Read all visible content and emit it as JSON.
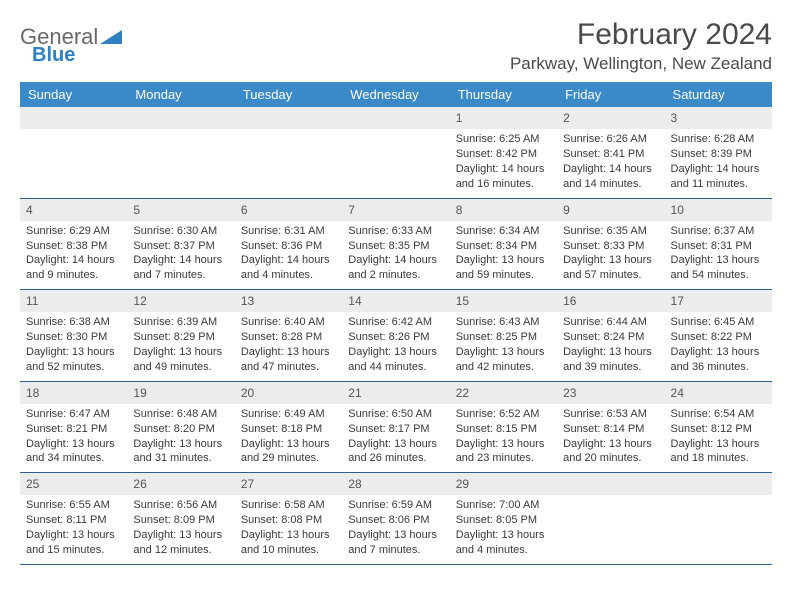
{
  "brand": {
    "part1": "General",
    "part2": "Blue"
  },
  "title": "February 2024",
  "location": "Parkway, Wellington, New Zealand",
  "colors": {
    "header_bg": "#3a89c9",
    "header_text": "#ffffff",
    "daynum_bg": "#ececec",
    "week_border": "#2c5f8d",
    "body_text": "#3a3a3a",
    "title_text": "#4a4a4a",
    "brand_gray": "#6a6a6a",
    "brand_blue": "#2f7fc1",
    "page_bg": "#ffffff"
  },
  "fonts": {
    "title_size_pt": 22,
    "location_size_pt": 13,
    "header_size_pt": 10,
    "cell_size_pt": 8
  },
  "day_headers": [
    "Sunday",
    "Monday",
    "Tuesday",
    "Wednesday",
    "Thursday",
    "Friday",
    "Saturday"
  ],
  "weeks": [
    [
      null,
      null,
      null,
      null,
      {
        "n": "1",
        "sr": "Sunrise: 6:25 AM",
        "ss": "Sunset: 8:42 PM",
        "dl": "Daylight: 14 hours and 16 minutes."
      },
      {
        "n": "2",
        "sr": "Sunrise: 6:26 AM",
        "ss": "Sunset: 8:41 PM",
        "dl": "Daylight: 14 hours and 14 minutes."
      },
      {
        "n": "3",
        "sr": "Sunrise: 6:28 AM",
        "ss": "Sunset: 8:39 PM",
        "dl": "Daylight: 14 hours and 11 minutes."
      }
    ],
    [
      {
        "n": "4",
        "sr": "Sunrise: 6:29 AM",
        "ss": "Sunset: 8:38 PM",
        "dl": "Daylight: 14 hours and 9 minutes."
      },
      {
        "n": "5",
        "sr": "Sunrise: 6:30 AM",
        "ss": "Sunset: 8:37 PM",
        "dl": "Daylight: 14 hours and 7 minutes."
      },
      {
        "n": "6",
        "sr": "Sunrise: 6:31 AM",
        "ss": "Sunset: 8:36 PM",
        "dl": "Daylight: 14 hours and 4 minutes."
      },
      {
        "n": "7",
        "sr": "Sunrise: 6:33 AM",
        "ss": "Sunset: 8:35 PM",
        "dl": "Daylight: 14 hours and 2 minutes."
      },
      {
        "n": "8",
        "sr": "Sunrise: 6:34 AM",
        "ss": "Sunset: 8:34 PM",
        "dl": "Daylight: 13 hours and 59 minutes."
      },
      {
        "n": "9",
        "sr": "Sunrise: 6:35 AM",
        "ss": "Sunset: 8:33 PM",
        "dl": "Daylight: 13 hours and 57 minutes."
      },
      {
        "n": "10",
        "sr": "Sunrise: 6:37 AM",
        "ss": "Sunset: 8:31 PM",
        "dl": "Daylight: 13 hours and 54 minutes."
      }
    ],
    [
      {
        "n": "11",
        "sr": "Sunrise: 6:38 AM",
        "ss": "Sunset: 8:30 PM",
        "dl": "Daylight: 13 hours and 52 minutes."
      },
      {
        "n": "12",
        "sr": "Sunrise: 6:39 AM",
        "ss": "Sunset: 8:29 PM",
        "dl": "Daylight: 13 hours and 49 minutes."
      },
      {
        "n": "13",
        "sr": "Sunrise: 6:40 AM",
        "ss": "Sunset: 8:28 PM",
        "dl": "Daylight: 13 hours and 47 minutes."
      },
      {
        "n": "14",
        "sr": "Sunrise: 6:42 AM",
        "ss": "Sunset: 8:26 PM",
        "dl": "Daylight: 13 hours and 44 minutes."
      },
      {
        "n": "15",
        "sr": "Sunrise: 6:43 AM",
        "ss": "Sunset: 8:25 PM",
        "dl": "Daylight: 13 hours and 42 minutes."
      },
      {
        "n": "16",
        "sr": "Sunrise: 6:44 AM",
        "ss": "Sunset: 8:24 PM",
        "dl": "Daylight: 13 hours and 39 minutes."
      },
      {
        "n": "17",
        "sr": "Sunrise: 6:45 AM",
        "ss": "Sunset: 8:22 PM",
        "dl": "Daylight: 13 hours and 36 minutes."
      }
    ],
    [
      {
        "n": "18",
        "sr": "Sunrise: 6:47 AM",
        "ss": "Sunset: 8:21 PM",
        "dl": "Daylight: 13 hours and 34 minutes."
      },
      {
        "n": "19",
        "sr": "Sunrise: 6:48 AM",
        "ss": "Sunset: 8:20 PM",
        "dl": "Daylight: 13 hours and 31 minutes."
      },
      {
        "n": "20",
        "sr": "Sunrise: 6:49 AM",
        "ss": "Sunset: 8:18 PM",
        "dl": "Daylight: 13 hours and 29 minutes."
      },
      {
        "n": "21",
        "sr": "Sunrise: 6:50 AM",
        "ss": "Sunset: 8:17 PM",
        "dl": "Daylight: 13 hours and 26 minutes."
      },
      {
        "n": "22",
        "sr": "Sunrise: 6:52 AM",
        "ss": "Sunset: 8:15 PM",
        "dl": "Daylight: 13 hours and 23 minutes."
      },
      {
        "n": "23",
        "sr": "Sunrise: 6:53 AM",
        "ss": "Sunset: 8:14 PM",
        "dl": "Daylight: 13 hours and 20 minutes."
      },
      {
        "n": "24",
        "sr": "Sunrise: 6:54 AM",
        "ss": "Sunset: 8:12 PM",
        "dl": "Daylight: 13 hours and 18 minutes."
      }
    ],
    [
      {
        "n": "25",
        "sr": "Sunrise: 6:55 AM",
        "ss": "Sunset: 8:11 PM",
        "dl": "Daylight: 13 hours and 15 minutes."
      },
      {
        "n": "26",
        "sr": "Sunrise: 6:56 AM",
        "ss": "Sunset: 8:09 PM",
        "dl": "Daylight: 13 hours and 12 minutes."
      },
      {
        "n": "27",
        "sr": "Sunrise: 6:58 AM",
        "ss": "Sunset: 8:08 PM",
        "dl": "Daylight: 13 hours and 10 minutes."
      },
      {
        "n": "28",
        "sr": "Sunrise: 6:59 AM",
        "ss": "Sunset: 8:06 PM",
        "dl": "Daylight: 13 hours and 7 minutes."
      },
      {
        "n": "29",
        "sr": "Sunrise: 7:00 AM",
        "ss": "Sunset: 8:05 PM",
        "dl": "Daylight: 13 hours and 4 minutes."
      },
      null,
      null
    ]
  ]
}
